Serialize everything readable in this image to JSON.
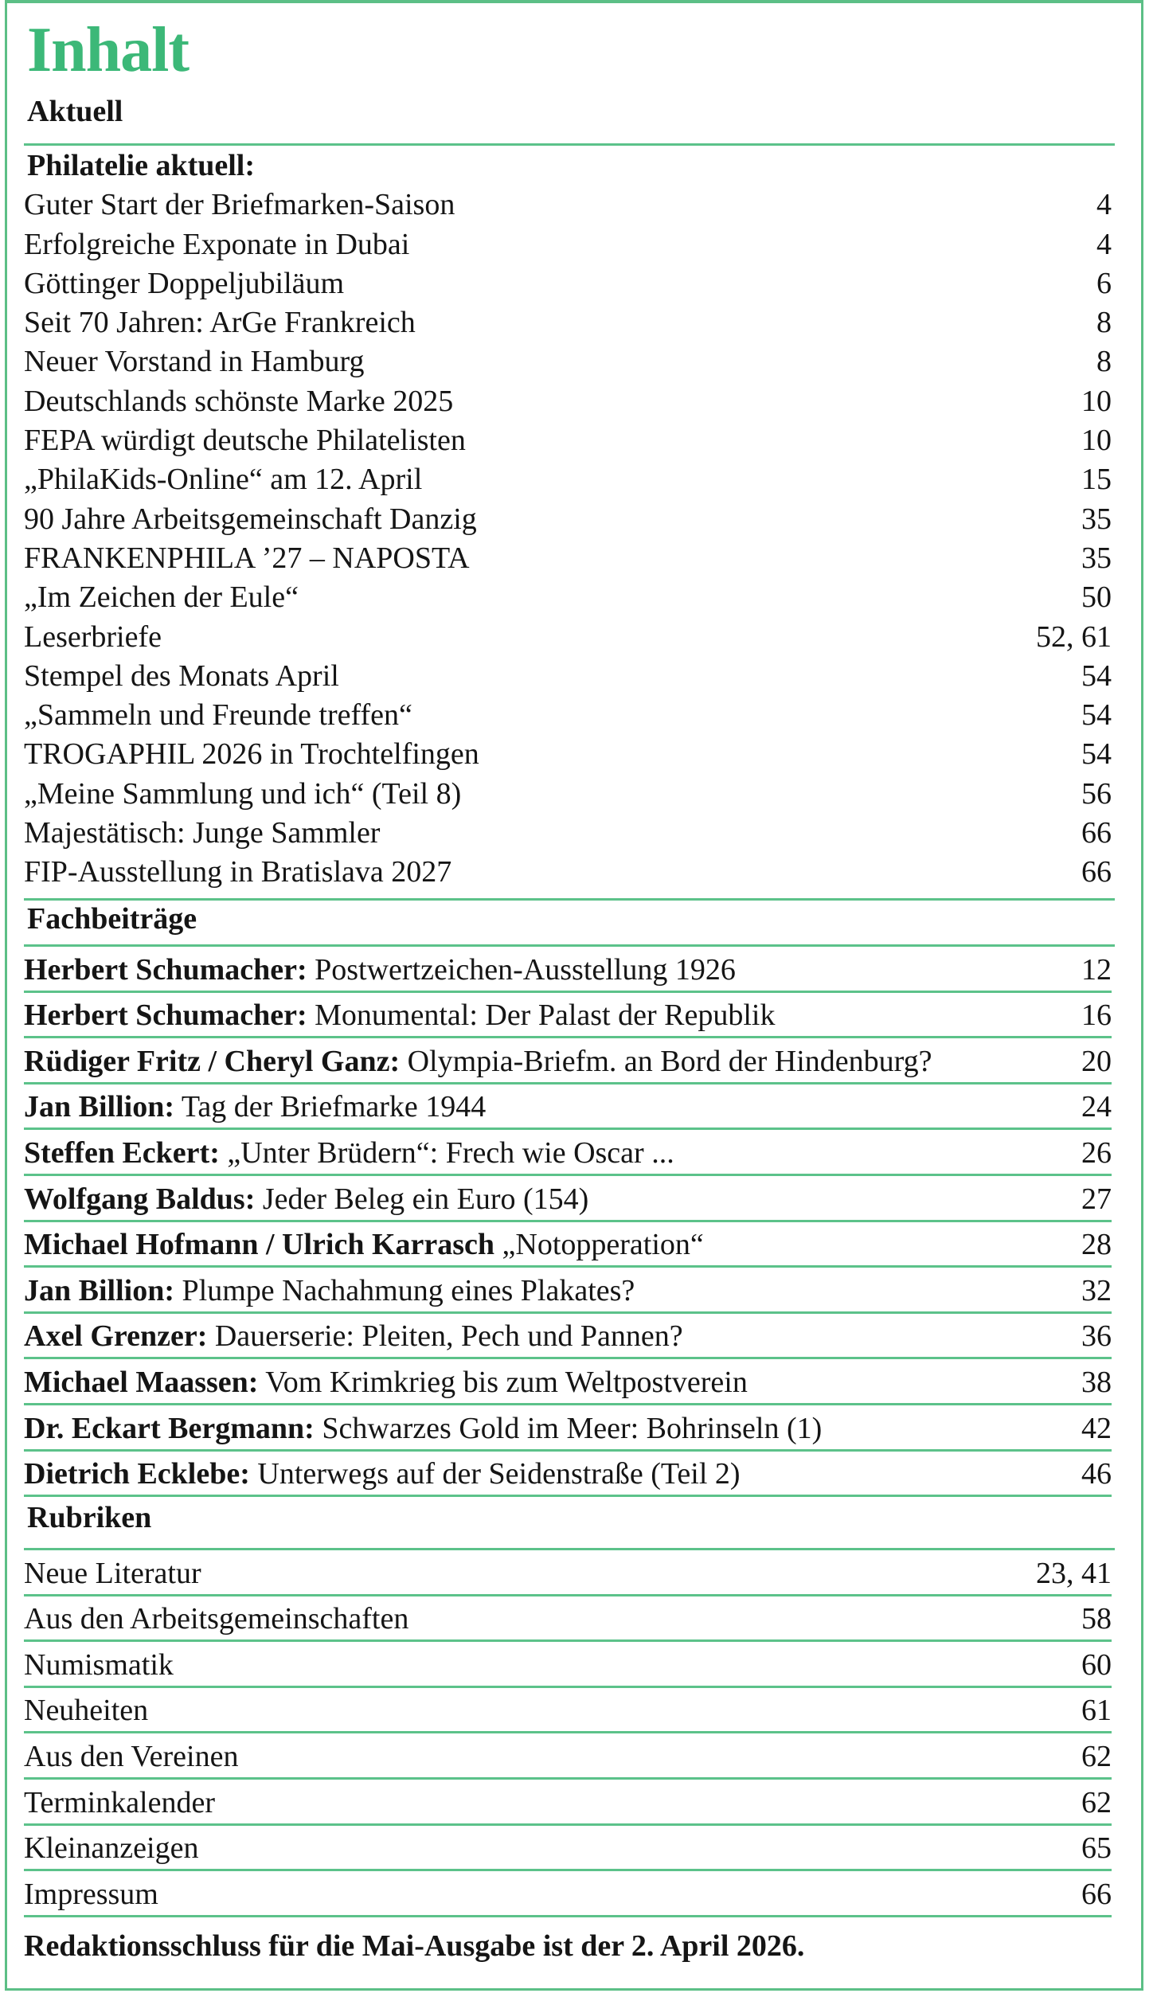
{
  "title": "Inhalt",
  "accent_color": "#3cb878",
  "aktuell": {
    "heading": "Aktuell",
    "subheading": "Philatelie aktuell:",
    "items": [
      {
        "title": "Guter Start der Briefmarken-Saison",
        "page": "4"
      },
      {
        "title": "Erfolgreiche Exponate in Dubai",
        "page": "4"
      },
      {
        "title": "Göttinger Doppeljubiläum",
        "page": "6"
      },
      {
        "title": "Seit 70 Jahren: ArGe Frankreich",
        "page": "8"
      },
      {
        "title": "Neuer Vorstand in Hamburg",
        "page": "8"
      },
      {
        "title": "Deutschlands schönste Marke 2025",
        "page": "10"
      },
      {
        "title": "FEPA würdigt deutsche Philatelisten",
        "page": "10"
      },
      {
        "title": "„PhilaKids-Online“ am 12. April",
        "page": "15"
      },
      {
        "title": "90 Jahre Arbeitsgemeinschaft Danzig",
        "page": "35"
      },
      {
        "title": "FRANKENPHILA ’27 – NAPOSTA",
        "page": "35"
      },
      {
        "title": "„Im Zeichen der Eule“",
        "page": "50"
      },
      {
        "title": "Leserbriefe",
        "page": "52, 61"
      },
      {
        "title": "Stempel des Monats April",
        "page": "54"
      },
      {
        "title": "„Sammeln und Freunde treffen“",
        "page": "54"
      },
      {
        "title": "TROGAPHIL 2026 in Trochtelfingen",
        "page": "54"
      },
      {
        "title": "„Meine Sammlung und ich“ (Teil 8)",
        "page": "56"
      },
      {
        "title": "Majestätisch: Junge Sammler",
        "page": "66"
      },
      {
        "title": "FIP-Ausstellung in Bratislava 2027",
        "page": "66"
      }
    ]
  },
  "fachbeitraege": {
    "heading": "Fachbeiträge",
    "items": [
      {
        "author": "Herbert Schumacher:",
        "title": " Postwertzeichen-Ausstellung 1926",
        "page": "12"
      },
      {
        "author": "Herbert Schumacher:",
        "title": " Monumental: Der Palast der Republik",
        "page": "16"
      },
      {
        "author": "Rüdiger Fritz / Cheryl Ganz:",
        "title": " Olympia-Briefm. an Bord der Hindenburg?",
        "page": "20"
      },
      {
        "author": "Jan Billion:",
        "title": " Tag der Briefmarke 1944",
        "page": "24"
      },
      {
        "author": "Steffen Eckert:",
        "title": " „Unter Brüdern“: Frech wie Oscar ...",
        "page": "26"
      },
      {
        "author": "Wolfgang Baldus:",
        "title": " Jeder Beleg ein Euro (154)",
        "page": "27"
      },
      {
        "author": "Michael Hofmann / Ulrich Karrasch",
        "title": " „Notopperation“",
        "page": "28"
      },
      {
        "author": "Jan Billion:",
        "title": " Plumpe Nachahmung eines Plakates?",
        "page": "32"
      },
      {
        "author": "Axel Grenzer:",
        "title": " Dauerserie: Pleiten, Pech und Pannen?",
        "page": "36"
      },
      {
        "author": "Michael Maassen:",
        "title": " Vom Krimkrieg bis zum Weltpostverein",
        "page": "38"
      },
      {
        "author": "Dr. Eckart Bergmann:",
        "title": " Schwarzes Gold im Meer: Bohrinseln (1)",
        "page": "42"
      },
      {
        "author": "Dietrich Ecklebe:",
        "title": " Unterwegs auf der Seidenstraße (Teil 2)",
        "page": "46"
      }
    ]
  },
  "rubriken": {
    "heading": "Rubriken",
    "items": [
      {
        "title": "Neue Literatur",
        "page": "23, 41"
      },
      {
        "title": "Aus den Arbeitsgemeinschaften",
        "page": "58"
      },
      {
        "title": "Numismatik",
        "page": "60"
      },
      {
        "title": "Neuheiten",
        "page": "61"
      },
      {
        "title": "Aus den Vereinen",
        "page": "62"
      },
      {
        "title": "Terminkalender",
        "page": "62"
      },
      {
        "title": "Kleinanzeigen",
        "page": "65"
      },
      {
        "title": "Impressum",
        "page": "66"
      }
    ]
  },
  "footer": "Redaktionsschluss für die Mai-Ausgabe ist der 2. April 2026."
}
